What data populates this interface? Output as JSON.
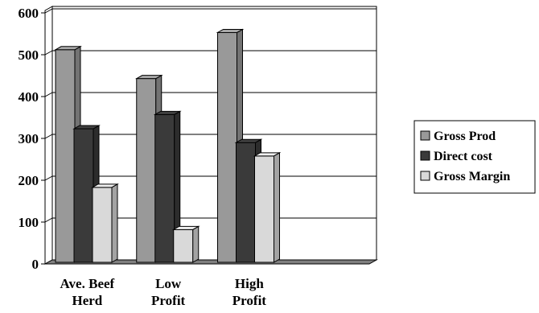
{
  "chart_data": {
    "type": "bar",
    "title": "",
    "xlabel": "",
    "ylabel": "",
    "categories": [
      [
        "Ave. Beef",
        "Herd"
      ],
      [
        "Low",
        "Profit"
      ],
      [
        "High",
        "Profit"
      ],
      [
        "",
        ""
      ]
    ],
    "series": [
      {
        "name": "Gross Prod",
        "values": [
          512,
          443,
          553,
          null
        ],
        "color": "#999999"
      },
      {
        "name": "Direct cost",
        "values": [
          323,
          357,
          290,
          null
        ],
        "color": "#3a3a3a"
      },
      {
        "name": "Gross Margin",
        "values": [
          183,
          82,
          258,
          null
        ],
        "color": "#d9d9d9"
      }
    ],
    "ylim": [
      0,
      600
    ],
    "yticks": [
      "0",
      "100",
      "200",
      "300",
      "400",
      "500",
      "600"
    ],
    "grid": true,
    "style": "3d-bar",
    "legend_position": "right"
  }
}
